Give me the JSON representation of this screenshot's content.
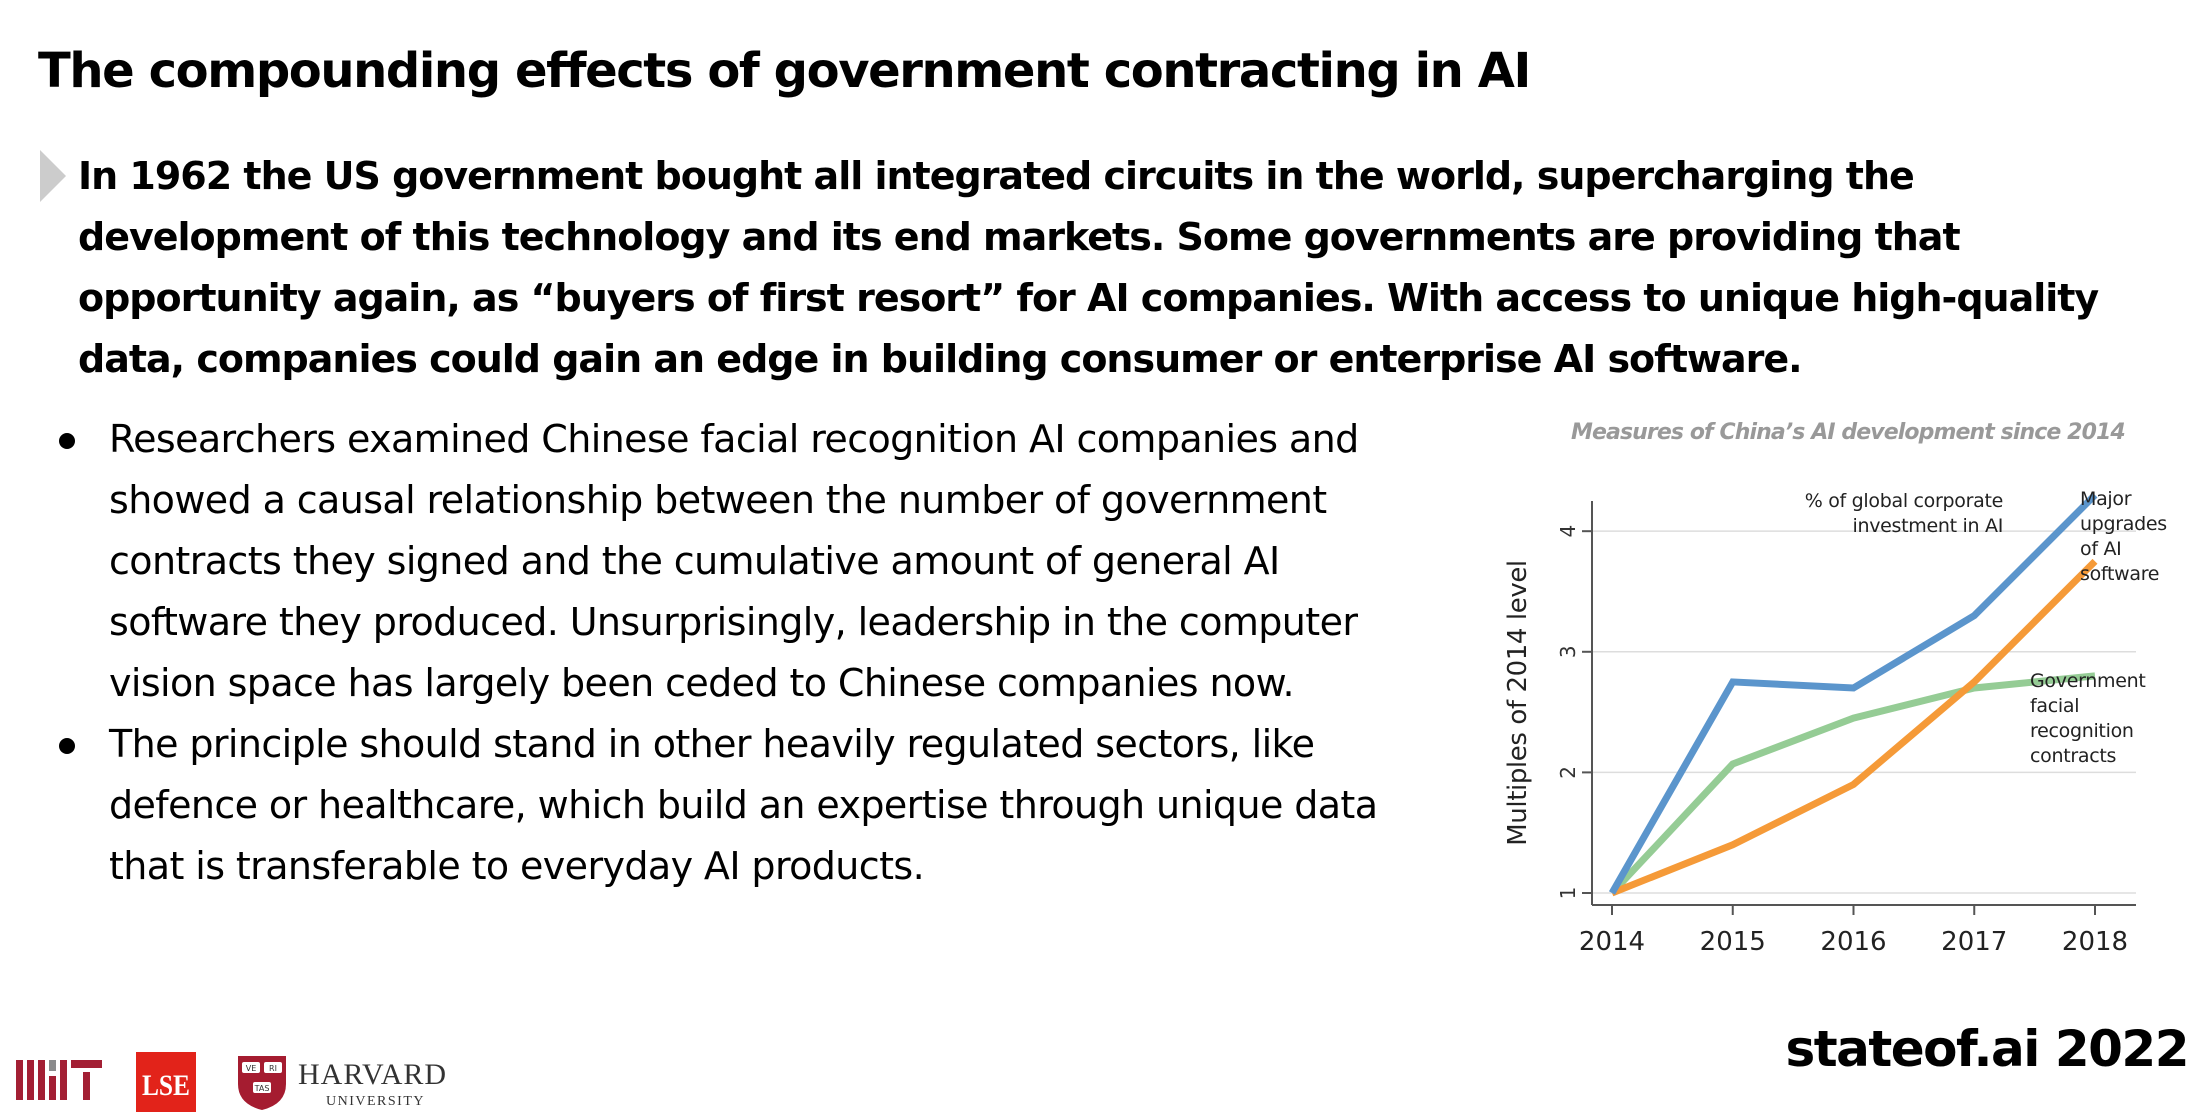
{
  "slide": {
    "title": "The compounding effects of government contracting in AI",
    "lead": "In 1962 the US government bought all integrated circuits in the world, supercharging the development of this technology and its end markets. Some governments are providing that opportunity again, as “buyers of first resort” for AI companies. With access to unique high-quality data, companies could gain an edge in building consumer or enterprise AI software.",
    "bullets": [
      "Researchers examined Chinese facial recognition AI companies and showed a causal relationship between the number of government contracts they signed and the cumulative amount of general AI software they produced. Unsurprisingly, leadership in the computer vision space has largely been ceded to Chinese companies now.",
      "The principle should stand in other heavily regulated sectors, like defence or healthcare, which build an expertise through unique data that is transferable to everyday AI products."
    ],
    "footer_brand": "stateof.ai 2022"
  },
  "logos": {
    "mit": "MIT",
    "lse": "LSE",
    "harvard_name": "HARVARD",
    "harvard_sub": "UNIVERSITY",
    "harvard_shield_text": [
      "VE",
      "RI",
      "TAS"
    ],
    "colors": {
      "mit": "#a31f34",
      "lse": "#e2231a",
      "harvard": "#a51c30"
    }
  },
  "chart_data": {
    "type": "line",
    "title": "Measures of China’s AI development since 2014",
    "xlabel": "",
    "ylabel": "Multiples of 2014 level",
    "x": [
      2014,
      2015,
      2016,
      2017,
      2018
    ],
    "xlim": [
      2014,
      2018
    ],
    "ylim": [
      1,
      4.3
    ],
    "yticks": [
      1,
      2,
      3,
      4
    ],
    "grid": "horizontal",
    "series": [
      {
        "name": "% of global corporate investment in AI",
        "color": "#5b95cc",
        "values": [
          1.0,
          2.75,
          2.7,
          3.3,
          4.3
        ]
      },
      {
        "name": "Major upgrades of AI software",
        "color": "#f59a38",
        "values": [
          1.0,
          1.4,
          1.9,
          2.75,
          3.75
        ]
      },
      {
        "name": "Government facial recognition contracts",
        "color": "#95cc95",
        "values": [
          1.0,
          2.07,
          2.45,
          2.7,
          2.8
        ]
      }
    ],
    "annotations": [
      {
        "series": 0,
        "lines": [
          "% of global corporate",
          "investment in AI"
        ]
      },
      {
        "series": 1,
        "lines": [
          "Major",
          "upgrades",
          "of AI",
          "software"
        ]
      },
      {
        "series": 2,
        "lines": [
          "Government",
          "facial",
          "recognition",
          "contracts"
        ]
      }
    ]
  }
}
